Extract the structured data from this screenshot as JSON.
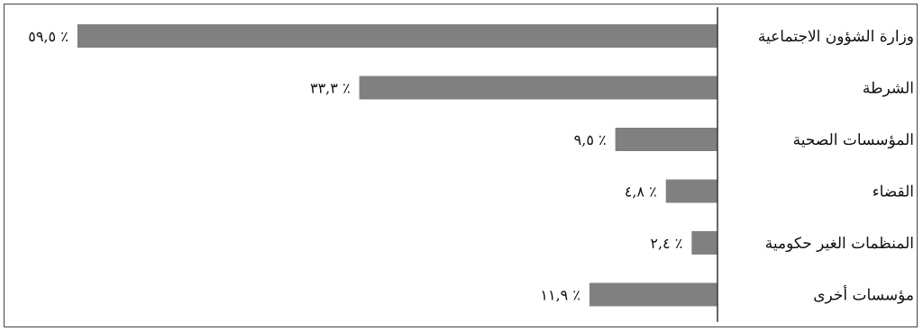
{
  "chart_data": {
    "type": "bar",
    "orientation": "horizontal",
    "direction": "rtl",
    "categories": [
      "وزارة الشؤون الاجتماعية",
      "الشرطة",
      "المؤسسات الصحية",
      "القضاء",
      "المنظمات الغير حكومية",
      "مؤسسات أخرى"
    ],
    "values": [
      59.5,
      33.3,
      9.5,
      4.8,
      2.4,
      11.9
    ],
    "value_labels": [
      "٥٩,٥ ٪",
      "٣٣,٣ ٪",
      "٩,٥ ٪",
      "٤,٨ ٪",
      "٢,٤ ٪",
      "١١,٩ ٪"
    ],
    "unit": "%",
    "xlim": [
      0,
      62
    ],
    "grid": false,
    "legend": "none",
    "colors": {
      "bar": "#808080",
      "axis": "#333333",
      "text": "#111111"
    }
  }
}
